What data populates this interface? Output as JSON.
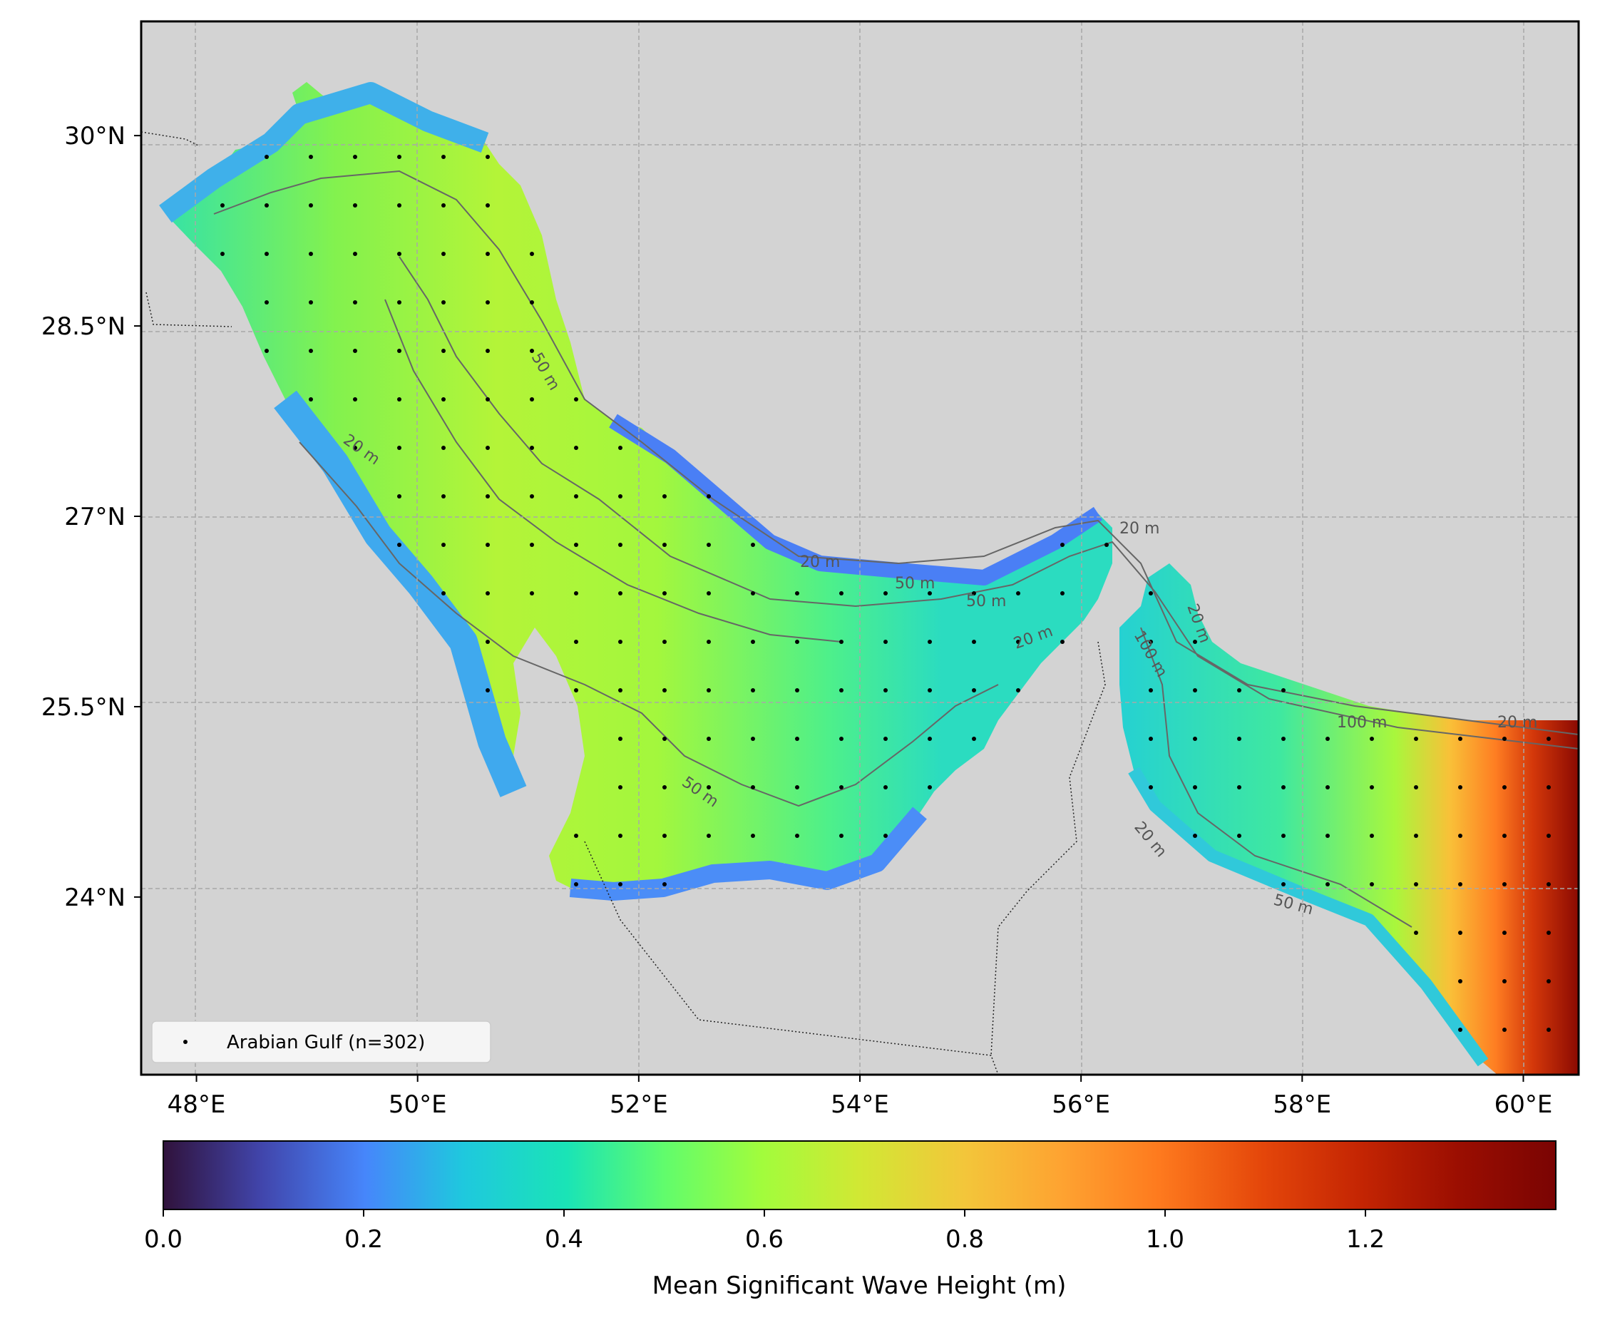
{
  "map": {
    "region": "Arabian Gulf",
    "lon_range": [
      47.5,
      60.5
    ],
    "lat_range": [
      22.6,
      30.9
    ],
    "land_color": "#d3d3d3",
    "grid": true,
    "grid_style": "dashed",
    "x_ticks": [
      {
        "value": 48,
        "label": "48°E"
      },
      {
        "value": 50,
        "label": "50°E"
      },
      {
        "value": 52,
        "label": "52°E"
      },
      {
        "value": 54,
        "label": "54°E"
      },
      {
        "value": 56,
        "label": "56°E"
      },
      {
        "value": 58,
        "label": "58°E"
      },
      {
        "value": 60,
        "label": "60°E"
      }
    ],
    "y_ticks": [
      {
        "value": 30,
        "label": "30°N"
      },
      {
        "value": 28.5,
        "label": "28.5°N"
      },
      {
        "value": 27,
        "label": "27°N"
      },
      {
        "value": 25.5,
        "label": "25.5°N"
      },
      {
        "value": 24,
        "label": "24°N"
      }
    ],
    "contour_labels": [
      "20 m",
      "50 m",
      "20 m",
      "50 m",
      "50 m",
      "20 m",
      "50 m",
      "100 m",
      "20 m",
      "100 m",
      "20 m",
      "20 m",
      "50 m",
      "20 m"
    ],
    "legend": {
      "placement": "lower-left",
      "label": "Arabian Gulf (n=302)",
      "marker": "black dot"
    }
  },
  "colorbar": {
    "label": "Mean Significant Wave Height (m)",
    "range": [
      0.0,
      1.39
    ],
    "ticks": [
      {
        "value": 0.0,
        "label": "0.0"
      },
      {
        "value": 0.2,
        "label": "0.2"
      },
      {
        "value": 0.4,
        "label": "0.4"
      },
      {
        "value": 0.6,
        "label": "0.6"
      },
      {
        "value": 0.8,
        "label": "0.8"
      },
      {
        "value": 1.0,
        "label": "1.0"
      },
      {
        "value": 1.2,
        "label": "1.2"
      }
    ],
    "colormap": "turbo",
    "colors": [
      "#30123b",
      "#4686fb",
      "#1ae4b6",
      "#a2fc3c",
      "#fabb39",
      "#e4460a",
      "#7a0403"
    ]
  }
}
